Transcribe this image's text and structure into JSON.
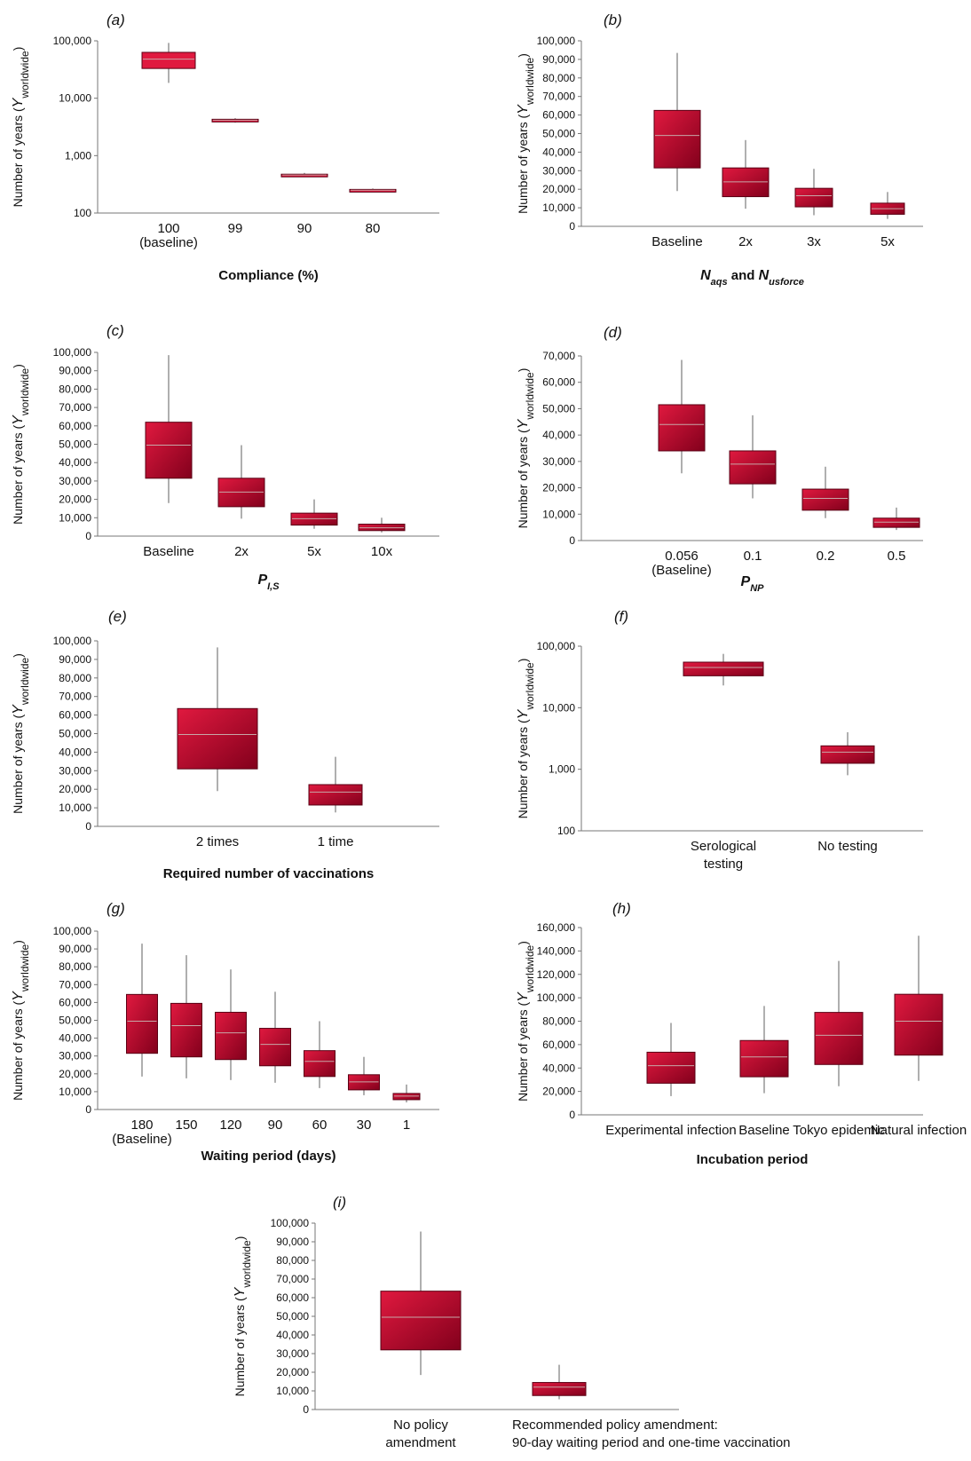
{
  "colors": {
    "box_light": "#e0193f",
    "box_dark": "#82001c",
    "whisker": "#7a7a7a",
    "axis": "#777777"
  },
  "y_title_prefix": "Number of years (",
  "y_title_var": "Y",
  "y_title_sub": "worldwide",
  "y_title_suffix": ")",
  "chart_data": [
    {
      "id": "a",
      "type": "box",
      "panel_label": "(a)",
      "yscale": "log",
      "ylim": [
        100,
        100000
      ],
      "yticks": [
        100,
        1000,
        10000,
        100000
      ],
      "ytick_labels": [
        "100",
        "1,000",
        "10,000",
        "100,000"
      ],
      "categories": [
        "100",
        "99",
        "90",
        "80"
      ],
      "category_sublabels": [
        "(baseline)",
        "",
        "",
        ""
      ],
      "xlabel_parts": [
        {
          "text": "Compliance (%)",
          "style": "bold"
        }
      ],
      "boxes": [
        {
          "min": 18500,
          "q1": 33000,
          "median": 48000,
          "q3": 63000,
          "max": 92000
        },
        {
          "min": 3750,
          "q1": 3950,
          "median": 4150,
          "q3": 4300,
          "max": 4500
        },
        {
          "min": 425,
          "q1": 440,
          "median": 460,
          "q3": 475,
          "max": 500
        },
        {
          "min": 232,
          "q1": 240,
          "median": 250,
          "q3": 258,
          "max": 268
        }
      ]
    },
    {
      "id": "b",
      "type": "box",
      "panel_label": "(b)",
      "yscale": "linear",
      "ylim": [
        0,
        100000
      ],
      "yticks": [
        0,
        10000,
        20000,
        30000,
        40000,
        50000,
        60000,
        70000,
        80000,
        90000,
        100000
      ],
      "ytick_labels": [
        "0",
        "10,000",
        "20,000",
        "30,000",
        "40,000",
        "50,000",
        "60,000",
        "70,000",
        "80,000",
        "90,000",
        "100,000"
      ],
      "categories": [
        "Baseline",
        "2x",
        "3x",
        "5x"
      ],
      "category_sublabels": [
        "",
        "",
        "",
        ""
      ],
      "xlabel_parts": [
        {
          "text": "N",
          "style": "bi"
        },
        {
          "text": "aqs",
          "style": "bi-sub"
        },
        {
          "text": " and ",
          "style": "bold"
        },
        {
          "text": "N",
          "style": "bi"
        },
        {
          "text": "usforce",
          "style": "bi-sub"
        }
      ],
      "boxes": [
        {
          "min": 19000,
          "q1": 31500,
          "median": 49000,
          "q3": 62500,
          "max": 93500
        },
        {
          "min": 9500,
          "q1": 16000,
          "median": 24000,
          "q3": 31500,
          "max": 46500
        },
        {
          "min": 6000,
          "q1": 10500,
          "median": 16500,
          "q3": 20500,
          "max": 31000
        },
        {
          "min": 4000,
          "q1": 6500,
          "median": 9500,
          "q3": 12500,
          "max": 18500
        }
      ]
    },
    {
      "id": "c",
      "type": "box",
      "panel_label": "(c)",
      "yscale": "linear",
      "ylim": [
        0,
        100000
      ],
      "yticks": [
        0,
        10000,
        20000,
        30000,
        40000,
        50000,
        60000,
        70000,
        80000,
        90000,
        100000
      ],
      "ytick_labels": [
        "0",
        "10,000",
        "20,000",
        "30,000",
        "40,000",
        "50,000",
        "60,000",
        "70,000",
        "80,000",
        "90,000",
        "100,000"
      ],
      "categories": [
        "Baseline",
        "2x",
        "5x",
        "10x"
      ],
      "category_sublabels": [
        "",
        "",
        "",
        ""
      ],
      "xlabel_parts": [
        {
          "text": "P",
          "style": "bi"
        },
        {
          "text": "I,S",
          "style": "bi-sub"
        }
      ],
      "boxes": [
        {
          "min": 18000,
          "q1": 31500,
          "median": 49500,
          "q3": 62000,
          "max": 98500
        },
        {
          "min": 9500,
          "q1": 16000,
          "median": 24000,
          "q3": 31500,
          "max": 49500
        },
        {
          "min": 4000,
          "q1": 6000,
          "median": 9500,
          "q3": 12500,
          "max": 20000
        },
        {
          "min": 2000,
          "q1": 3000,
          "median": 4500,
          "q3": 6500,
          "max": 10000
        }
      ]
    },
    {
      "id": "d",
      "type": "box",
      "panel_label": "(d)",
      "yscale": "linear",
      "ylim": [
        0,
        70000
      ],
      "yticks": [
        0,
        10000,
        20000,
        30000,
        40000,
        50000,
        60000,
        70000
      ],
      "ytick_labels": [
        "0",
        "10,000",
        "20,000",
        "30,000",
        "40,000",
        "50,000",
        "60,000",
        "70,000"
      ],
      "categories": [
        "0.056",
        "0.1",
        "0.2",
        "0.5"
      ],
      "category_sublabels": [
        "(Baseline)",
        "",
        "",
        ""
      ],
      "xlabel_parts": [
        {
          "text": "P",
          "style": "bi"
        },
        {
          "text": "NP",
          "style": "bi-sub"
        }
      ],
      "boxes": [
        {
          "min": 25500,
          "q1": 34000,
          "median": 44000,
          "q3": 51500,
          "max": 68500
        },
        {
          "min": 16000,
          "q1": 21500,
          "median": 29000,
          "q3": 34000,
          "max": 47500
        },
        {
          "min": 8500,
          "q1": 11500,
          "median": 16000,
          "q3": 19500,
          "max": 28000
        },
        {
          "min": 4000,
          "q1": 5000,
          "median": 7000,
          "q3": 8500,
          "max": 12500
        }
      ]
    },
    {
      "id": "e",
      "type": "box",
      "panel_label": "(e)",
      "yscale": "linear",
      "ylim": [
        0,
        100000
      ],
      "yticks": [
        0,
        10000,
        20000,
        30000,
        40000,
        50000,
        60000,
        70000,
        80000,
        90000,
        100000
      ],
      "ytick_labels": [
        "0",
        "10,000",
        "20,000",
        "30,000",
        "40,000",
        "50,000",
        "60,000",
        "70,000",
        "80,000",
        "90,000",
        "100,000"
      ],
      "categories": [
        "2 times",
        "1 time"
      ],
      "category_sublabels": [
        "",
        ""
      ],
      "xlabel_parts": [
        {
          "text": "Required number of vaccinations",
          "style": "bold"
        }
      ],
      "boxes": [
        {
          "min": 19000,
          "q1": 31000,
          "median": 49500,
          "q3": 63500,
          "max": 96500
        },
        {
          "min": 7500,
          "q1": 11500,
          "median": 18500,
          "q3": 22500,
          "max": 37500
        }
      ]
    },
    {
      "id": "f",
      "type": "box",
      "panel_label": "(f)",
      "yscale": "log",
      "ylim": [
        100,
        100000
      ],
      "yticks": [
        100,
        1000,
        10000,
        100000
      ],
      "ytick_labels": [
        "100",
        "1,000",
        "10,000",
        "100,000"
      ],
      "categories": [
        "Serological",
        "No testing"
      ],
      "category_sublabels": [
        "testing",
        ""
      ],
      "xlabel_parts": [],
      "boxes": [
        {
          "min": 23000,
          "q1": 33000,
          "median": 45000,
          "q3": 55000,
          "max": 75000
        },
        {
          "min": 800,
          "q1": 1250,
          "median": 1900,
          "q3": 2400,
          "max": 4000
        }
      ]
    },
    {
      "id": "g",
      "type": "box",
      "panel_label": "(g)",
      "yscale": "linear",
      "ylim": [
        0,
        100000
      ],
      "yticks": [
        0,
        10000,
        20000,
        30000,
        40000,
        50000,
        60000,
        70000,
        80000,
        90000,
        100000
      ],
      "ytick_labels": [
        "0",
        "10,000",
        "20,000",
        "30,000",
        "40,000",
        "50,000",
        "60,000",
        "70,000",
        "80,000",
        "90,000",
        "100,000"
      ],
      "categories": [
        "180",
        "150",
        "120",
        "90",
        "60",
        "30",
        "1"
      ],
      "category_sublabels": [
        "(Baseline)",
        "",
        "",
        "",
        "",
        "",
        ""
      ],
      "xlabel_parts": [
        {
          "text": "Waiting period (days)",
          "style": "bold"
        }
      ],
      "boxes": [
        {
          "min": 18500,
          "q1": 31500,
          "median": 49500,
          "q3": 64500,
          "max": 93000
        },
        {
          "min": 17500,
          "q1": 29500,
          "median": 47000,
          "q3": 59500,
          "max": 86500
        },
        {
          "min": 16500,
          "q1": 28000,
          "median": 43000,
          "q3": 54500,
          "max": 78500
        },
        {
          "min": 15000,
          "q1": 24500,
          "median": 36500,
          "q3": 45500,
          "max": 66000
        },
        {
          "min": 12000,
          "q1": 18500,
          "median": 27000,
          "q3": 33000,
          "max": 49500
        },
        {
          "min": 8000,
          "q1": 11000,
          "median": 15500,
          "q3": 19500,
          "max": 29500
        },
        {
          "min": 4000,
          "q1": 5500,
          "median": 7500,
          "q3": 9000,
          "max": 14000
        }
      ]
    },
    {
      "id": "h",
      "type": "box",
      "panel_label": "(h)",
      "yscale": "linear",
      "ylim": [
        0,
        160000
      ],
      "yticks": [
        0,
        20000,
        40000,
        60000,
        80000,
        100000,
        120000,
        140000,
        160000
      ],
      "ytick_labels": [
        "0",
        "20,000",
        "40,000",
        "60,000",
        "80,000",
        "100,000",
        "120,000",
        "140,000",
        "160,000"
      ],
      "categories": [
        "Experimental infection",
        "Baseline",
        "Tokyo epidemic",
        "Natural infection"
      ],
      "category_sublabels": [
        "",
        "",
        "",
        ""
      ],
      "xlabel_parts": [
        {
          "text": "Incubation period",
          "style": "bold"
        }
      ],
      "boxes": [
        {
          "min": 16000,
          "q1": 27000,
          "median": 42000,
          "q3": 53500,
          "max": 78500
        },
        {
          "min": 18500,
          "q1": 32500,
          "median": 49500,
          "q3": 63500,
          "max": 93000
        },
        {
          "min": 24500,
          "q1": 43000,
          "median": 68000,
          "q3": 87500,
          "max": 131500
        },
        {
          "min": 29000,
          "q1": 51000,
          "median": 80000,
          "q3": 103000,
          "max": 153000
        }
      ]
    },
    {
      "id": "i",
      "type": "box",
      "panel_label": "(i)",
      "yscale": "linear",
      "ylim": [
        0,
        100000
      ],
      "yticks": [
        0,
        10000,
        20000,
        30000,
        40000,
        50000,
        60000,
        70000,
        80000,
        90000,
        100000
      ],
      "ytick_labels": [
        "0",
        "10,000",
        "20,000",
        "30,000",
        "40,000",
        "50,000",
        "60,000",
        "70,000",
        "80,000",
        "90,000",
        "100,000"
      ],
      "categories": [
        "No policy",
        "Recommended policy amendment:"
      ],
      "category_sublabels": [
        "amendment",
        "90-day waiting period and one-time vaccination"
      ],
      "xlabel_parts": [],
      "boxes": [
        {
          "min": 18500,
          "q1": 32000,
          "median": 49500,
          "q3": 63500,
          "max": 95500
        },
        {
          "min": 5500,
          "q1": 7500,
          "median": 12000,
          "q3": 14500,
          "max": 24000
        }
      ]
    }
  ]
}
